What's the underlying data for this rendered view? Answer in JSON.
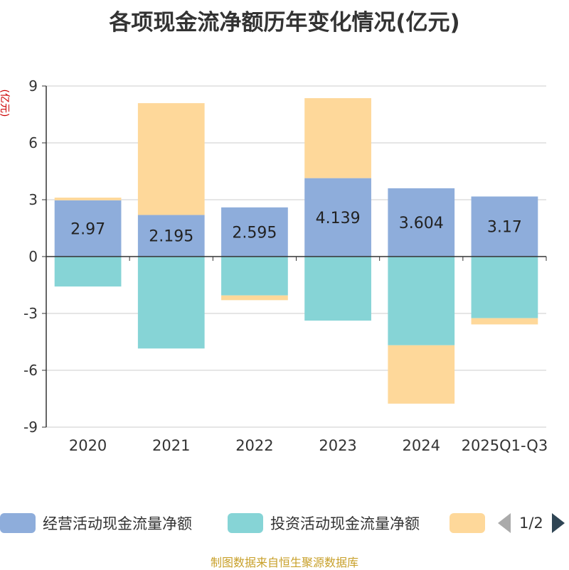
{
  "chart_data": {
    "type": "bar",
    "stacked": true,
    "title": "各项现金流净额历年变化情况(亿元)",
    "ylabel": "(亿元)",
    "categories": [
      "2020",
      "2021",
      "2022",
      "2023",
      "2024",
      "2025Q1-Q3"
    ],
    "ylim": [
      -9,
      9
    ],
    "yticks": [
      -9,
      -6,
      -3,
      0,
      3,
      6,
      9
    ],
    "grid": true,
    "legend_position": "bottom",
    "series": [
      {
        "name": "经营活动现金流量净额",
        "color": "#8eaddb",
        "values": [
          2.97,
          2.195,
          2.595,
          4.139,
          3.604,
          3.17
        ],
        "labels_shown": true
      },
      {
        "name": "投资活动现金流量净额",
        "color": "#86d4d6",
        "values": [
          -1.58,
          -4.85,
          -2.05,
          -3.38,
          -4.68,
          -3.25
        ],
        "labels_shown": false
      },
      {
        "name": "",
        "color": "#fed89a",
        "values": [
          0.14,
          5.9,
          -0.25,
          4.22,
          -3.08,
          -0.33
        ],
        "labels_shown": false
      }
    ]
  },
  "legend": {
    "items": [
      "经营活动现金流量净额",
      "投资活动现金流量净额",
      ""
    ],
    "page_indicator": "1/2"
  },
  "source": "制图数据来自恒生聚源数据库"
}
